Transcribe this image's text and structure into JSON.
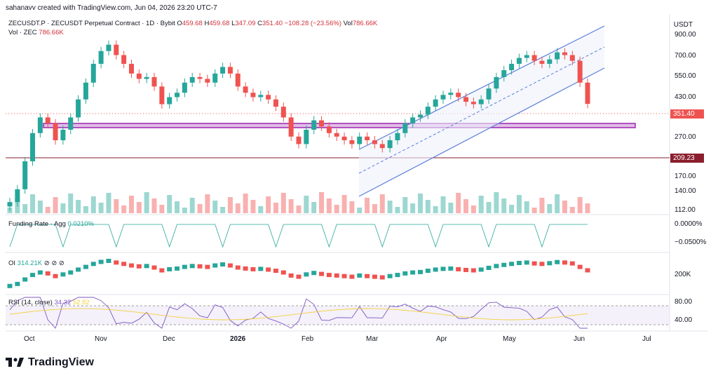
{
  "header": {
    "byline": "sahanavv created with TradingView.com, Jun 04, 2026 23:20 UTC-7"
  },
  "legend": {
    "symbol": "ZECUSDT.P · ZECUSDT Perpetual Contract · 1D · Bybit",
    "o_label": "O",
    "o": "459.68",
    "h_label": "H",
    "h": "459.68",
    "l_label": "L",
    "l": "347.09",
    "c_label": "C",
    "c": "351.40",
    "chg": "−108.28 (−23.56%)",
    "vol_label": "Vol",
    "vol": "786.66K",
    "vol2_label": "Vol · ZEC",
    "vol2": "786.66K"
  },
  "price_axis": {
    "currency": "USDT",
    "labels": [
      "900.00",
      "700.00",
      "550.00",
      "430.00",
      "270.00",
      "170.00",
      "140.00",
      "112.00"
    ],
    "last_price": "351.40",
    "level_price": "209.23"
  },
  "funding": {
    "label": "Funding Rate · Agg",
    "value": "0.0210%",
    "axis": [
      "0.0000%",
      "−0.0500%"
    ]
  },
  "oi": {
    "label": "OI",
    "value": "314.21K",
    "icons": "⊘ ⊘ ⊘",
    "axis": "200K"
  },
  "rsi": {
    "label": "RSI (14, close)",
    "v1": "34.32",
    "v2": "52.82",
    "axis": [
      "80.00",
      "40.00"
    ]
  },
  "time_axis": [
    "Oct",
    "Nov",
    "Dec",
    "2026",
    "Feb",
    "Mar",
    "Apr",
    "May",
    "Jun",
    "Jul"
  ],
  "brand": {
    "name": "TradingView"
  },
  "colors": {
    "up": "#26a69a",
    "down": "#ef5350",
    "channel": "#5b7fdb",
    "zone": "#9c27b0",
    "level": "#8b1e2d"
  },
  "chart_data": {
    "type": "candlestick",
    "closes_approx": [
      112,
      130,
      180,
      250,
      300,
      280,
      230,
      260,
      300,
      370,
      450,
      560,
      650,
      700,
      620,
      560,
      500,
      470,
      480,
      430,
      350,
      380,
      400,
      450,
      480,
      470,
      450,
      500,
      540,
      500,
      430,
      400,
      380,
      390,
      370,
      340,
      300,
      240,
      220,
      260,
      290,
      270,
      250,
      240,
      230,
      220,
      240,
      230,
      220,
      210,
      230,
      250,
      280,
      300,
      310,
      340,
      370,
      390,
      400,
      380,
      360,
      350,
      370,
      420,
      480,
      520,
      560,
      600,
      620,
      580,
      560,
      590,
      640,
      620,
      580,
      450,
      351.4
    ]
  }
}
